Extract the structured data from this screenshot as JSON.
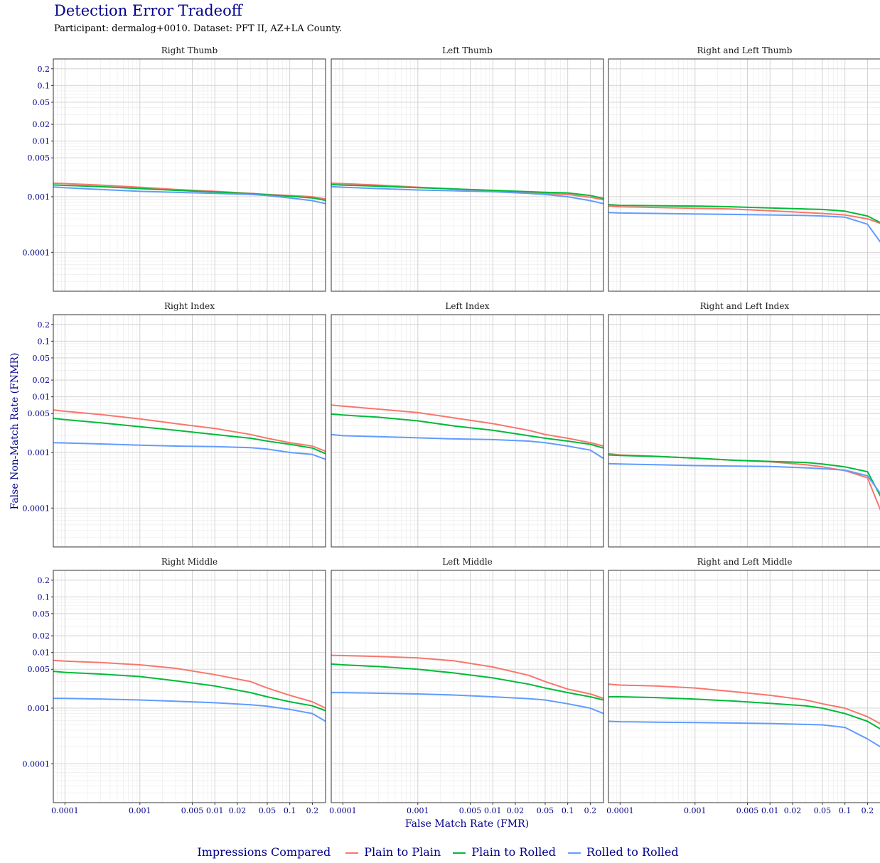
{
  "title": "Detection Error Tradeoff",
  "subtitle": "Participant: dermalog+0010. Dataset: PFT II, AZ+LA County.",
  "legend": {
    "title": "Impressions Compared",
    "items": [
      {
        "label": "Plain to Plain",
        "color": "#F8766D"
      },
      {
        "label": "Plain to Rolled",
        "color": "#00BA38"
      },
      {
        "label": "Rolled to Rolled",
        "color": "#619CFF"
      }
    ]
  },
  "chart_data": {
    "type": "line",
    "xlabel": "False Match Rate (FMR)",
    "ylabel": "False Non-Match Rate (FNMR)",
    "x_scale": "log",
    "y_scale": "log",
    "xlim": [
      7e-05,
      0.3
    ],
    "ylim": [
      2e-05,
      0.3
    ],
    "x_ticks": [
      {
        "value": 0.0001,
        "label": "0.0001"
      },
      {
        "value": 0.001,
        "label": "0.001"
      },
      {
        "value": 0.005,
        "label": "0.005"
      },
      {
        "value": 0.01,
        "label": "0.01"
      },
      {
        "value": 0.02,
        "label": "0.02"
      },
      {
        "value": 0.05,
        "label": "0.05"
      },
      {
        "value": 0.1,
        "label": "0.1"
      },
      {
        "value": 0.2,
        "label": "0.2"
      }
    ],
    "y_ticks": [
      {
        "value": 0.0001,
        "label": "0.0001"
      },
      {
        "value": 0.001,
        "label": "0.001"
      },
      {
        "value": 0.005,
        "label": "0.005"
      },
      {
        "value": 0.01,
        "label": "0.01"
      },
      {
        "value": 0.02,
        "label": "0.02"
      },
      {
        "value": 0.05,
        "label": "0.05"
      },
      {
        "value": 0.1,
        "label": "0.1"
      },
      {
        "value": 0.2,
        "label": "0.2"
      }
    ],
    "grid": true,
    "legend_position": "bottom",
    "x_points": [
      7e-05,
      0.0001,
      0.0003,
      0.001,
      0.003,
      0.01,
      0.03,
      0.05,
      0.1,
      0.2,
      0.3
    ],
    "panels": [
      {
        "title": "Right Thumb",
        "series": [
          {
            "name": "Plain to Plain",
            "values": [
              0.00175,
              0.00172,
              0.00162,
              0.00148,
              0.00135,
              0.00125,
              0.00115,
              0.0011,
              0.00105,
              0.001,
              0.00091
            ]
          },
          {
            "name": "Plain to Rolled",
            "values": [
              0.00163,
              0.0016,
              0.00152,
              0.0014,
              0.0013,
              0.00122,
              0.00113,
              0.00108,
              0.00102,
              0.00095,
              0.00086
            ]
          },
          {
            "name": "Rolled to Rolled",
            "values": [
              0.0015,
              0.00145,
              0.00135,
              0.00125,
              0.0012,
              0.00115,
              0.0011,
              0.00105,
              0.00095,
              0.00085,
              0.00075
            ]
          }
        ]
      },
      {
        "title": "Left Thumb",
        "series": [
          {
            "name": "Plain to Plain",
            "values": [
              0.00175,
              0.00172,
              0.00162,
              0.00148,
              0.00138,
              0.00128,
              0.0012,
              0.00115,
              0.0011,
              0.00098,
              0.00088
            ]
          },
          {
            "name": "Plain to Rolled",
            "values": [
              0.00165,
              0.00162,
              0.00155,
              0.00145,
              0.00138,
              0.0013,
              0.00123,
              0.0012,
              0.00117,
              0.00105,
              0.00093
            ]
          },
          {
            "name": "Rolled to Rolled",
            "values": [
              0.00152,
              0.00148,
              0.0014,
              0.00132,
              0.00128,
              0.00123,
              0.00115,
              0.0011,
              0.001,
              0.00085,
              0.00075
            ]
          }
        ]
      },
      {
        "title": "Right and Left Thumb",
        "series": [
          {
            "name": "Plain to Plain",
            "values": [
              0.00068,
              0.00066,
              0.00064,
              0.00062,
              0.0006,
              0.00056,
              0.00052,
              0.0005,
              0.00047,
              0.0004,
              0.00033
            ]
          },
          {
            "name": "Plain to Rolled",
            "values": [
              0.00072,
              0.0007,
              0.00069,
              0.00068,
              0.00066,
              0.00063,
              0.0006,
              0.00059,
              0.00055,
              0.00045,
              0.00034
            ]
          },
          {
            "name": "Rolled to Rolled",
            "values": [
              0.00052,
              0.00051,
              0.0005,
              0.00049,
              0.00048,
              0.00047,
              0.00046,
              0.00045,
              0.00043,
              0.00032,
              0.00015
            ]
          }
        ]
      },
      {
        "title": "Right Index",
        "series": [
          {
            "name": "Plain to Plain",
            "values": [
              0.0058,
              0.0055,
              0.0048,
              0.004,
              0.0033,
              0.0027,
              0.0021,
              0.0018,
              0.0015,
              0.0013,
              0.00105
            ]
          },
          {
            "name": "Plain to Rolled",
            "values": [
              0.0041,
              0.0039,
              0.0034,
              0.0029,
              0.0025,
              0.0021,
              0.0018,
              0.0016,
              0.0014,
              0.0012,
              0.00095
            ]
          },
          {
            "name": "Rolled to Rolled",
            "values": [
              0.0015,
              0.00148,
              0.00142,
              0.00135,
              0.0013,
              0.00127,
              0.00122,
              0.00115,
              0.001,
              0.00092,
              0.00075
            ]
          }
        ]
      },
      {
        "title": "Left Index",
        "series": [
          {
            "name": "Plain to Plain",
            "values": [
              0.0071,
              0.0068,
              0.006,
              0.0052,
              0.0042,
              0.0033,
              0.0025,
              0.0021,
              0.0018,
              0.0015,
              0.0013
            ]
          },
          {
            "name": "Plain to Rolled",
            "values": [
              0.0049,
              0.0047,
              0.0043,
              0.0037,
              0.003,
              0.0025,
              0.002,
              0.0018,
              0.0016,
              0.0014,
              0.0012
            ]
          },
          {
            "name": "Rolled to Rolled",
            "values": [
              0.0021,
              0.002,
              0.00192,
              0.00183,
              0.00175,
              0.0017,
              0.0016,
              0.0015,
              0.0013,
              0.0011,
              0.00078
            ]
          }
        ]
      },
      {
        "title": "Right and Left Index",
        "series": [
          {
            "name": "Plain to Plain",
            "values": [
              0.00095,
              0.0009,
              0.00085,
              0.00079,
              0.00073,
              0.00068,
              0.0006,
              0.00055,
              0.00047,
              0.00035,
              9e-05
            ]
          },
          {
            "name": "Plain to Rolled",
            "values": [
              0.0009,
              0.00088,
              0.00085,
              0.00079,
              0.00073,
              0.00069,
              0.00066,
              0.00062,
              0.00055,
              0.00045,
              0.00016
            ]
          },
          {
            "name": "Rolled to Rolled",
            "values": [
              0.00063,
              0.00062,
              0.0006,
              0.00058,
              0.00057,
              0.00056,
              0.00053,
              0.00051,
              0.00048,
              0.00038,
              0.00018
            ]
          }
        ]
      },
      {
        "title": "Right Middle",
        "series": [
          {
            "name": "Plain to Plain",
            "values": [
              0.0072,
              0.007,
              0.0066,
              0.006,
              0.0052,
              0.004,
              0.003,
              0.0023,
              0.0017,
              0.0013,
              0.001
            ]
          },
          {
            "name": "Plain to Rolled",
            "values": [
              0.0046,
              0.0044,
              0.0041,
              0.0037,
              0.0031,
              0.0025,
              0.0019,
              0.0016,
              0.0013,
              0.0011,
              0.0009
            ]
          },
          {
            "name": "Rolled to Rolled",
            "values": [
              0.0015,
              0.0015,
              0.00146,
              0.0014,
              0.00133,
              0.00125,
              0.00115,
              0.00108,
              0.00095,
              0.0008,
              0.00058
            ]
          }
        ]
      },
      {
        "title": "Left Middle",
        "series": [
          {
            "name": "Plain to Plain",
            "values": [
              0.0089,
              0.0088,
              0.0085,
              0.008,
              0.0071,
              0.0055,
              0.0039,
              0.003,
              0.0022,
              0.0018,
              0.0015
            ]
          },
          {
            "name": "Plain to Rolled",
            "values": [
              0.0062,
              0.006,
              0.0056,
              0.005,
              0.0043,
              0.0035,
              0.0027,
              0.0023,
              0.0019,
              0.0016,
              0.0014
            ]
          },
          {
            "name": "Rolled to Rolled",
            "values": [
              0.0019,
              0.0019,
              0.00185,
              0.0018,
              0.00172,
              0.0016,
              0.00148,
              0.0014,
              0.0012,
              0.001,
              0.0008
            ]
          }
        ]
      },
      {
        "title": "Right and Left Middle",
        "series": [
          {
            "name": "Plain to Plain",
            "values": [
              0.0027,
              0.0026,
              0.0025,
              0.0023,
              0.002,
              0.0017,
              0.0014,
              0.0012,
              0.001,
              0.0007,
              0.00052
            ]
          },
          {
            "name": "Plain to Rolled",
            "values": [
              0.0016,
              0.0016,
              0.00155,
              0.00145,
              0.00135,
              0.00122,
              0.0011,
              0.001,
              0.0008,
              0.00058,
              0.00042
            ]
          },
          {
            "name": "Rolled to Rolled",
            "values": [
              0.00058,
              0.00057,
              0.00056,
              0.00055,
              0.00054,
              0.00053,
              0.00051,
              0.0005,
              0.00045,
              0.00028,
              0.0002
            ]
          }
        ]
      }
    ]
  }
}
